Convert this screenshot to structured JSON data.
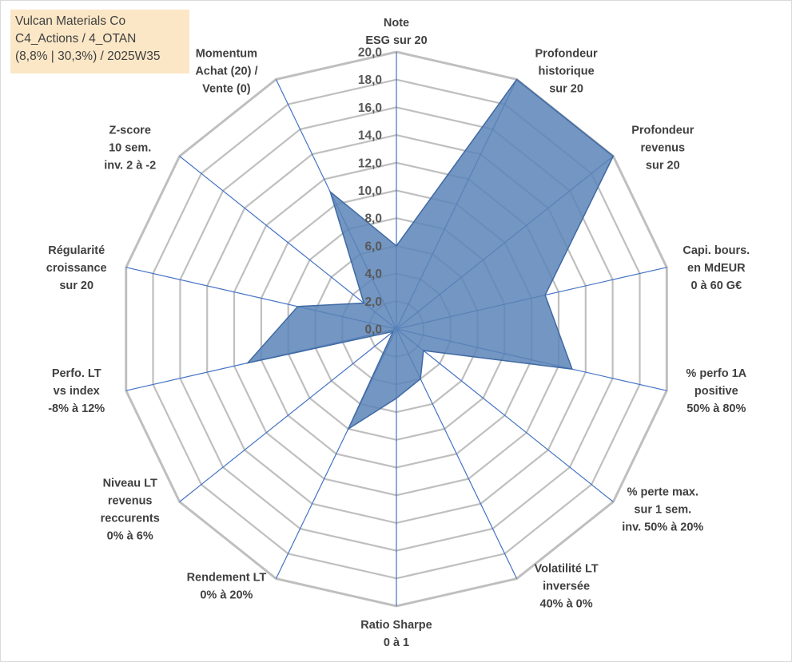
{
  "header": {
    "line1": "Vulcan Materials Co",
    "line2": "C4_Actions / 4_OTAN",
    "line3": "(8,8% | 30,3%) / 2025W35"
  },
  "colors": {
    "fill": "#5b84b7",
    "stroke": "#3f6aa3",
    "spoke": "#4472c4",
    "grid": "#bfbfbf",
    "header_bg": "#fbe7c6"
  },
  "chart_data": {
    "type": "radar",
    "rmin": 0,
    "rmax": 20,
    "step": 2,
    "tick_labels": [
      "0,0",
      "2,0",
      "4,0",
      "6,0",
      "8,0",
      "10,0",
      "12,0",
      "14,0",
      "16,0",
      "18,0",
      "20,0"
    ],
    "categories": [
      [
        "Note",
        "ESG sur 20"
      ],
      [
        "Profondeur",
        "historique",
        "sur 20"
      ],
      [
        "Profondeur",
        "revenus",
        "sur 20"
      ],
      [
        "Capi. bours.",
        "en MdEUR",
        "0 à 60 G€"
      ],
      [
        "% perfo 1A",
        "positive",
        "50% à 80%"
      ],
      [
        "% perte max.",
        "sur 1 sem.",
        "inv. 50% à 20%"
      ],
      [
        "Volatilité LT",
        "inversée",
        "40% à 0%"
      ],
      [
        "Ratio Sharpe",
        "0 à 1"
      ],
      [
        "Rendement LT",
        "0% à 20%"
      ],
      [
        "Niveau LT",
        "revenus",
        "reccurents",
        "0% à 6%"
      ],
      [
        "Perfo. LT",
        "vs index",
        "-8% à 12%"
      ],
      [
        "Régularité",
        "croissance",
        "sur 20"
      ],
      [
        "Z-score",
        "10 sem.",
        "inv. 2 à -2"
      ],
      [
        "Momentum",
        "Achat (20) /",
        "Vente (0)"
      ]
    ],
    "values": [
      6.0,
      20.0,
      20.0,
      11.0,
      13.0,
      2.5,
      4.0,
      5.0,
      8.0,
      0.3,
      11.0,
      7.3,
      3.0,
      11.0
    ]
  }
}
